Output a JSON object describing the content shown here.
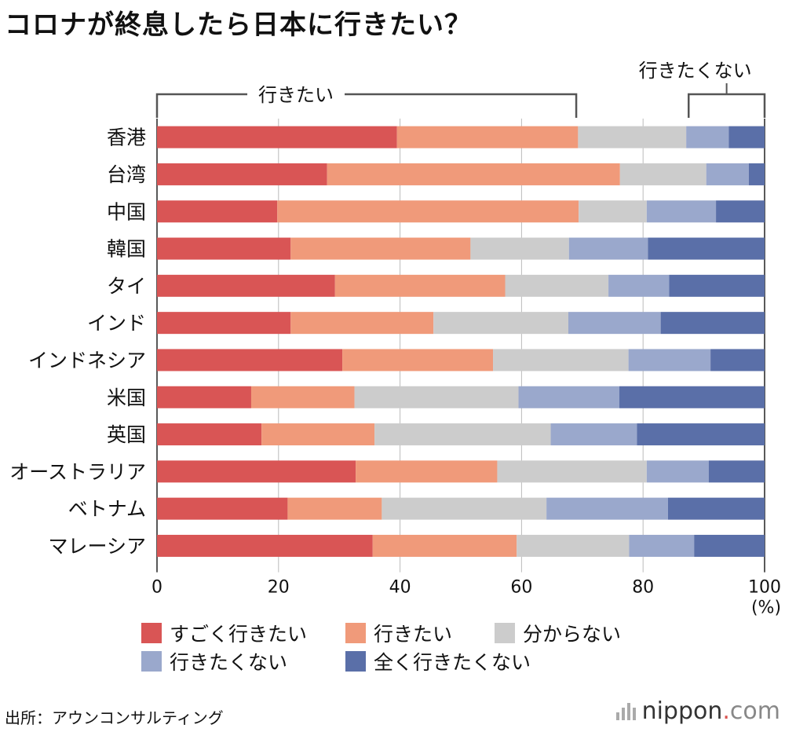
{
  "title": "コロナが終息したら日本に行きたい？",
  "chart_data": {
    "type": "bar",
    "orientation": "horizontal",
    "stacked": true,
    "categories": [
      "香港",
      "台湾",
      "中国",
      "韓国",
      "タイ",
      "インド",
      "インドネシア",
      "米国",
      "英国",
      "オーストラリア",
      "ベトナム",
      "マレーシア"
    ],
    "series": [
      {
        "name": "すごく行きたい",
        "color": "#d95555",
        "values": [
          39.5,
          28,
          19.8,
          22,
          29.3,
          22,
          30.5,
          15.5,
          17.2,
          32.7,
          21.5,
          35.5
        ]
      },
      {
        "name": "行きたい",
        "color": "#f09a7a",
        "values": [
          29.8,
          48.2,
          49.6,
          29.6,
          28,
          23.5,
          24.8,
          17,
          18.6,
          23.3,
          15.5,
          23.7
        ]
      },
      {
        "name": "分からない",
        "color": "#cccccc",
        "values": [
          17.8,
          14.2,
          11.2,
          16.2,
          17,
          22.2,
          22.3,
          27,
          29,
          24.6,
          27.1,
          18.5
        ]
      },
      {
        "name": "行きたくない",
        "color": "#9aa8cc",
        "values": [
          7,
          7,
          11.4,
          13,
          10,
          15.2,
          13.5,
          16.6,
          14.2,
          10.2,
          20,
          10.7
        ]
      },
      {
        "name": "全く行きたくない",
        "color": "#5a6fa8",
        "values": [
          5.9,
          2.6,
          8,
          19.2,
          15.7,
          17.1,
          8.9,
          23.9,
          21,
          9.2,
          15.9,
          11.6
        ]
      }
    ],
    "x_ticks": [
      "0",
      "20",
      "40",
      "60",
      "80",
      "100"
    ],
    "x_unit": "(%)",
    "xlim": [
      0,
      100
    ],
    "grid": true,
    "group_labels": {
      "positive": {
        "label": "行きたい",
        "range": [
          0,
          69
        ]
      },
      "negative": {
        "label": "行きたくない",
        "range": [
          87.5,
          100
        ]
      }
    },
    "legend_placement": "bottom"
  },
  "source": "出所：アウンコンサルティング",
  "brand": {
    "name": "nippon",
    "dot": ".",
    "suffix": "com"
  }
}
